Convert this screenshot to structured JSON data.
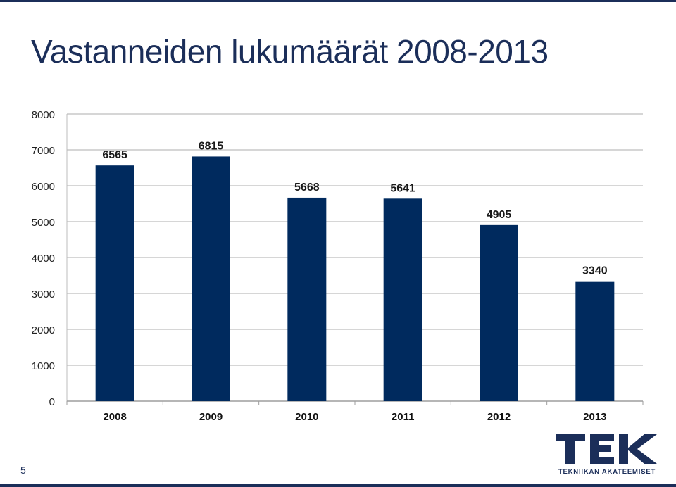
{
  "slide": {
    "title": "Vastanneiden lukumäärät 2008-2013",
    "page_number": "5",
    "accent_color": "#1b2e59"
  },
  "logo": {
    "wordmark": "TEK",
    "tagline": "TEKNIIKAN AKATEEMISET",
    "color": "#1b2e59"
  },
  "chart_data": {
    "type": "bar",
    "title": "",
    "xlabel": "",
    "ylabel": "",
    "categories": [
      "2008",
      "2009",
      "2010",
      "2011",
      "2012",
      "2013"
    ],
    "series": [
      {
        "values": [
          6565,
          6815,
          5668,
          5641,
          4905,
          3340
        ],
        "color": "#002a5e"
      }
    ],
    "data_labels": [
      "6565",
      "6815",
      "5668",
      "5641",
      "4905",
      "3340"
    ],
    "ylim": [
      0,
      8000
    ],
    "y_ticks": [
      0,
      1000,
      2000,
      3000,
      4000,
      5000,
      6000,
      7000,
      8000
    ],
    "grid": true,
    "legend": "none"
  }
}
